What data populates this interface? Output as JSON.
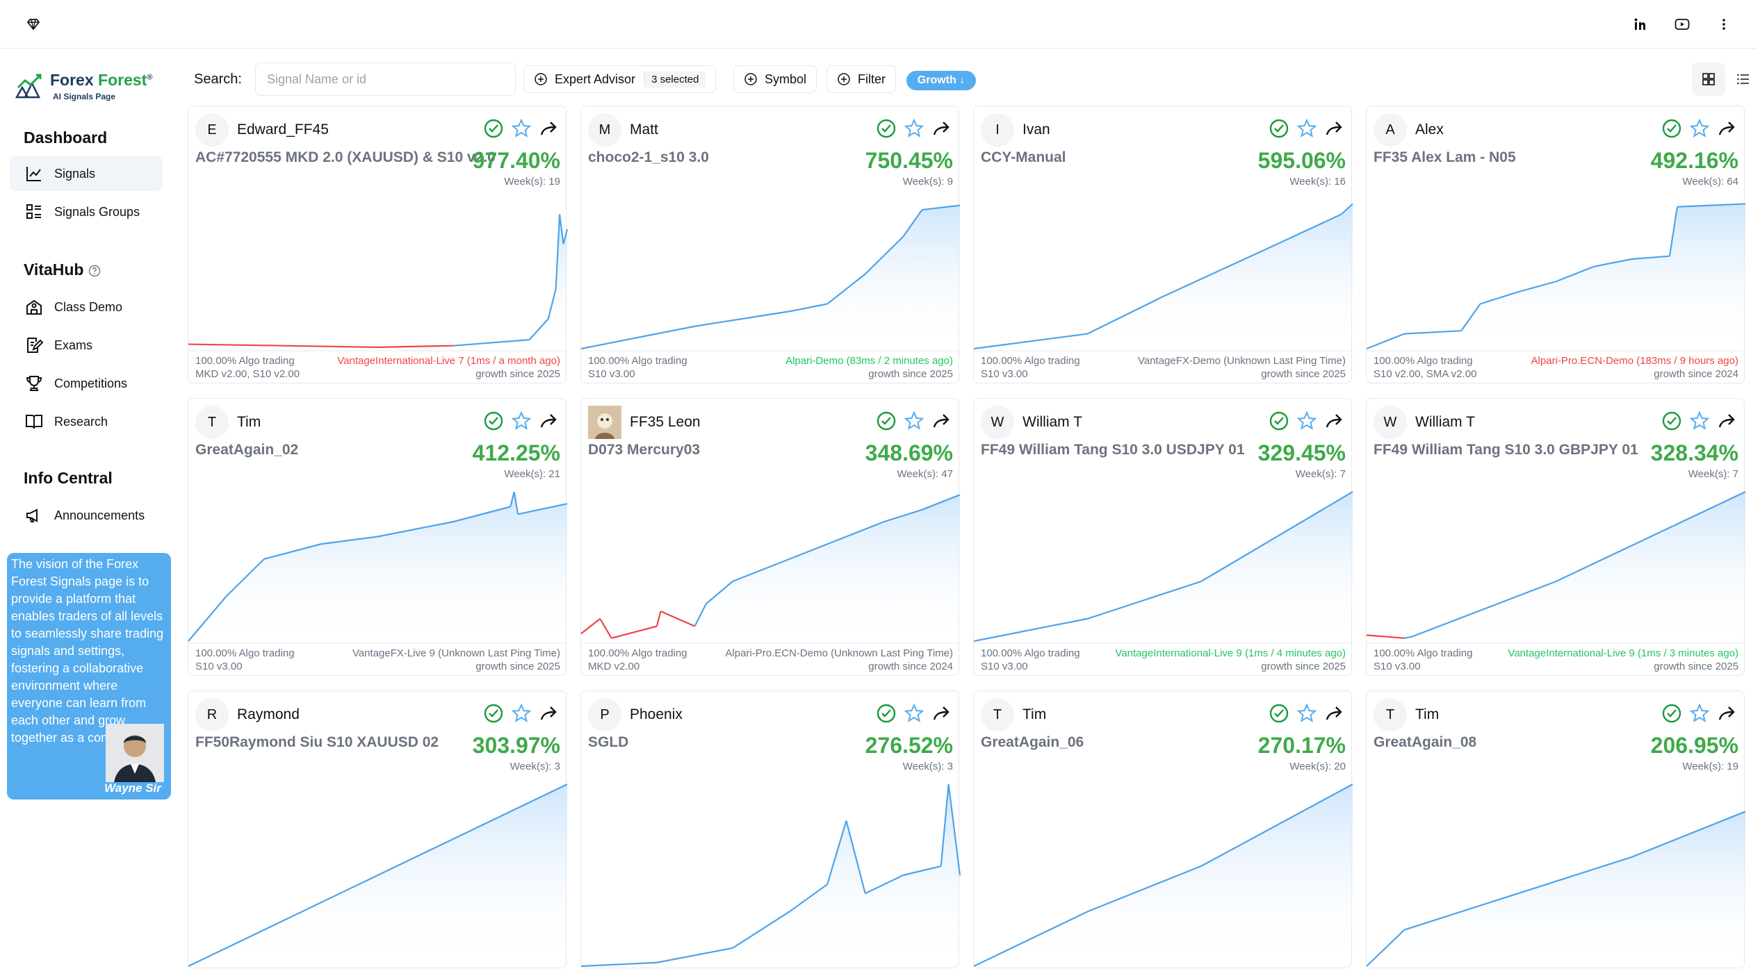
{
  "sidebar": {
    "logo_name_1": "Forex",
    "logo_name_2": "Forest",
    "logo_sub": "AI Signals Page",
    "section_dashboard": "Dashboard",
    "signals": "Signals",
    "signals_groups": "Signals Groups",
    "section_vitahub": "VitaHub",
    "class_demo": "Class Demo",
    "exams": "Exams",
    "competitions": "Competitions",
    "research": "Research",
    "section_info": "Info Central",
    "announcements": "Announcements",
    "vision_text": "The vision of the Forex Forest Signals page is to provide a platform that enables traders of all levels to seamlessly share trading signals and settings, fostering a collaborative environment where everyone can learn from each other and grow together as a community.",
    "vision_signature": "Wayne Sir"
  },
  "toolbar": {
    "search_label": "Search:",
    "search_placeholder": "Signal Name or id",
    "expert_advisor": "Expert Advisor",
    "selected_badge": "3 selected",
    "symbol": "Symbol",
    "filter": "Filter",
    "growth": "Growth ↓"
  },
  "cards": [
    {
      "initial": "E",
      "user": "Edward_FF45",
      "signal": "AC#7720555 MKD 2.0 (XAUUSD) & S10 v2.0",
      "growth": "977.40%",
      "weeks": "Week(s): 19",
      "algo": "100.00% Algo trading",
      "ea": "MKD v2.00, S10 v2.00",
      "server": "VantageInternational-Live 7 (1ms / a month ago)",
      "server_status": "red",
      "since": "growth since 2025",
      "chart": "spike"
    },
    {
      "initial": "M",
      "user": "Matt",
      "signal": "choco2-1_s10 3.0",
      "growth": "750.45%",
      "weeks": "Week(s): 9",
      "algo": "100.00% Algo trading",
      "ea": "S10 v3.00",
      "server": "Alpari-Demo (83ms / 2 minutes ago)",
      "server_status": "green",
      "since": "growth since 2025",
      "chart": "scurve"
    },
    {
      "initial": "I",
      "user": "Ivan",
      "signal": "CCY-Manual",
      "growth": "595.06%",
      "weeks": "Week(s): 16",
      "algo": "100.00% Algo trading",
      "ea": "S10 v3.00",
      "server": "VantageFX-Demo (Unknown Last Ping Time)",
      "server_status": "gray",
      "since": "growth since 2025",
      "chart": "linear"
    },
    {
      "initial": "A",
      "user": "Alex",
      "signal": "FF35 Alex Lam - N05",
      "growth": "492.16%",
      "weeks": "Week(s): 64",
      "algo": "100.00% Algo trading",
      "ea": "S10 v2.00, SMA v2.00",
      "server": "Alpari-Pro.ECN-Demo (183ms / 9 hours ago)",
      "server_status": "red",
      "since": "growth since 2024",
      "chart": "steps"
    },
    {
      "initial": "T",
      "user": "Tim",
      "signal": "GreatAgain_02",
      "growth": "412.25%",
      "weeks": "Week(s): 21",
      "algo": "100.00% Algo trading",
      "ea": "S10 v3.00",
      "server": "VantageFX-Live 9 (Unknown Last Ping Time)",
      "server_status": "gray",
      "since": "growth since 2025",
      "chart": "concave"
    },
    {
      "initial": "",
      "user": "FF35 Leon",
      "signal": "D073 Mercury03",
      "growth": "348.69%",
      "weeks": "Week(s): 47",
      "algo": "100.00% Algo trading",
      "ea": "MKD v2.00",
      "server": "Alpari-Pro.ECN-Demo (Unknown Last Ping Time)",
      "server_status": "gray",
      "since": "growth since 2024",
      "chart": "saw"
    },
    {
      "initial": "W",
      "user": "William T",
      "signal": "FF49 William Tang S10 3.0 USDJPY 01",
      "growth": "329.45%",
      "weeks": "Week(s): 7",
      "algo": "100.00% Algo trading",
      "ea": "S10 v3.00",
      "server": "VantageInternational-Live 9 (1ms / 4 minutes ago)",
      "server_status": "green",
      "since": "growth since 2025",
      "chart": "linear2"
    },
    {
      "initial": "W",
      "user": "William T",
      "signal": "FF49 William Tang S10 3.0 GBPJPY 01",
      "growth": "328.34%",
      "weeks": "Week(s): 7",
      "algo": "100.00% Algo trading",
      "ea": "S10 v3.00",
      "server": "VantageInternational-Live 9 (1ms / 3 minutes ago)",
      "server_status": "green",
      "since": "growth since 2025",
      "chart": "linear3"
    },
    {
      "initial": "R",
      "user": "Raymond",
      "signal": "FF50Raymond Siu S10 XAUUSD 02",
      "growth": "303.97%",
      "weeks": "Week(s): 3",
      "algo": "",
      "ea": "",
      "server": "",
      "server_status": "gray",
      "since": "",
      "chart": "lin4"
    },
    {
      "initial": "P",
      "user": "Phoenix",
      "signal": "SGLD",
      "growth": "276.52%",
      "weeks": "Week(s): 3",
      "algo": "",
      "ea": "",
      "server": "",
      "server_status": "gray",
      "since": "",
      "chart": "noisy"
    },
    {
      "initial": "T",
      "user": "Tim",
      "signal": "GreatAgain_06",
      "growth": "270.17%",
      "weeks": "Week(s): 20",
      "algo": "",
      "ea": "",
      "server": "",
      "server_status": "gray",
      "since": "",
      "chart": "lin5"
    },
    {
      "initial": "T",
      "user": "Tim",
      "signal": "GreatAgain_08",
      "growth": "206.95%",
      "weeks": "Week(s): 19",
      "algo": "",
      "ea": "",
      "server": "",
      "server_status": "gray",
      "since": "",
      "chart": "lin6"
    }
  ],
  "colors": {
    "accent": "#55acee",
    "growth": "#3eaa4a",
    "line": "#4fa3e8",
    "loss": "#ef4444",
    "online": "#22c55e"
  }
}
